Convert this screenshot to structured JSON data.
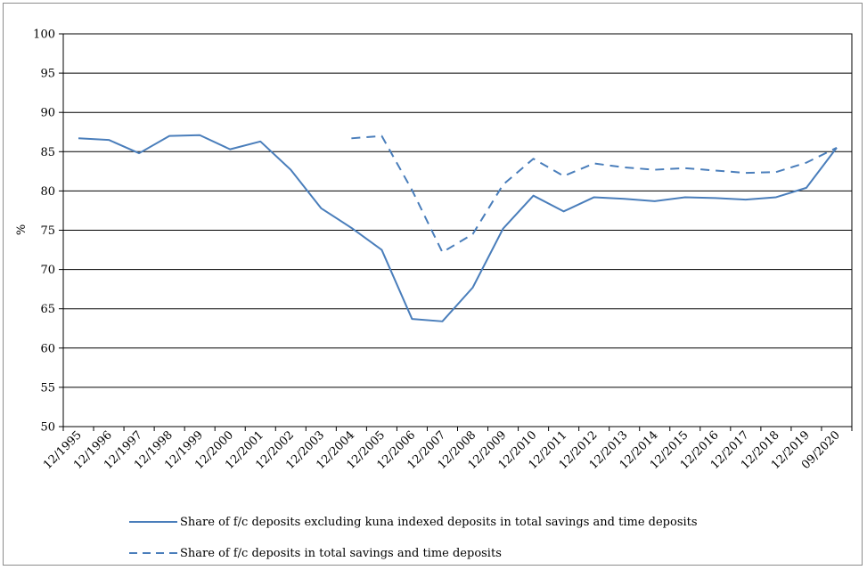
{
  "chart_data": {
    "type": "line",
    "title": "",
    "xlabel": "",
    "ylabel": "%",
    "ylim": [
      50,
      100
    ],
    "yticks": [
      50,
      55,
      60,
      65,
      70,
      75,
      80,
      85,
      90,
      95,
      100
    ],
    "grid": "horizontal",
    "legend_position": "bottom",
    "categories": [
      "12/1995",
      "12/1996",
      "12/1997",
      "12/1998",
      "12/1999",
      "12/2000",
      "12/2001",
      "12/2002",
      "12/2003",
      "12/2004",
      "12/2005",
      "12/2006",
      "12/2007",
      "12/2008",
      "12/2009",
      "12/2010",
      "12/2011",
      "12/2012",
      "12/2013",
      "12/2014",
      "12/2015",
      "12/2016",
      "12/2017",
      "12/2018",
      "12/2019",
      "09/2020"
    ],
    "series": [
      {
        "name": "Share of f/c deposits excluding kuna indexed deposits in total savings and time deposits",
        "style": "solid",
        "color": "#4a7ebb",
        "values": [
          86.7,
          86.5,
          84.8,
          87.0,
          87.1,
          85.3,
          86.3,
          82.7,
          77.8,
          75.3,
          72.5,
          63.7,
          63.4,
          67.7,
          75.2,
          79.4,
          77.4,
          79.2,
          79.0,
          78.7,
          79.2,
          79.1,
          78.9,
          79.2,
          80.4,
          85.5
        ]
      },
      {
        "name": "Share of f/c deposits in total savings and time deposits",
        "style": "dashed",
        "color": "#4a7ebb",
        "values": [
          null,
          null,
          null,
          null,
          null,
          null,
          null,
          null,
          null,
          86.7,
          87.0,
          80.1,
          72.2,
          74.5,
          80.8,
          84.1,
          81.9,
          83.5,
          83.0,
          82.7,
          82.9,
          82.6,
          82.3,
          82.4,
          83.6,
          85.5
        ]
      }
    ]
  }
}
